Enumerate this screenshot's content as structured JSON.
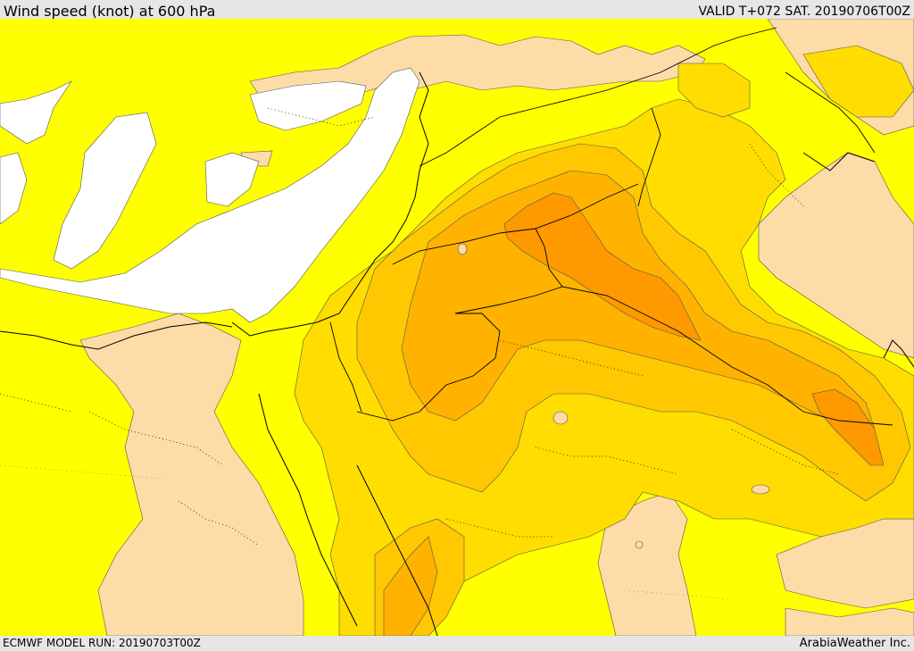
{
  "header": {
    "title": "Wind speed (knot) at 600 hPa",
    "valid": "VALID T+072 SAT. 20190706T00Z"
  },
  "footer": {
    "model_run": "ECMWF MODEL RUN: 20190703T00Z",
    "credit": "ArabiaWeather Inc."
  },
  "colors": {
    "calm": "#ffffff",
    "band_1": "#fddca8",
    "band_2": "#ffff00",
    "band_3": "#ffdd00",
    "band_4": "#ffc800",
    "band_5": "#ffb300",
    "band_6": "#ff9900",
    "coast": "#000000",
    "border": "#000000"
  }
}
